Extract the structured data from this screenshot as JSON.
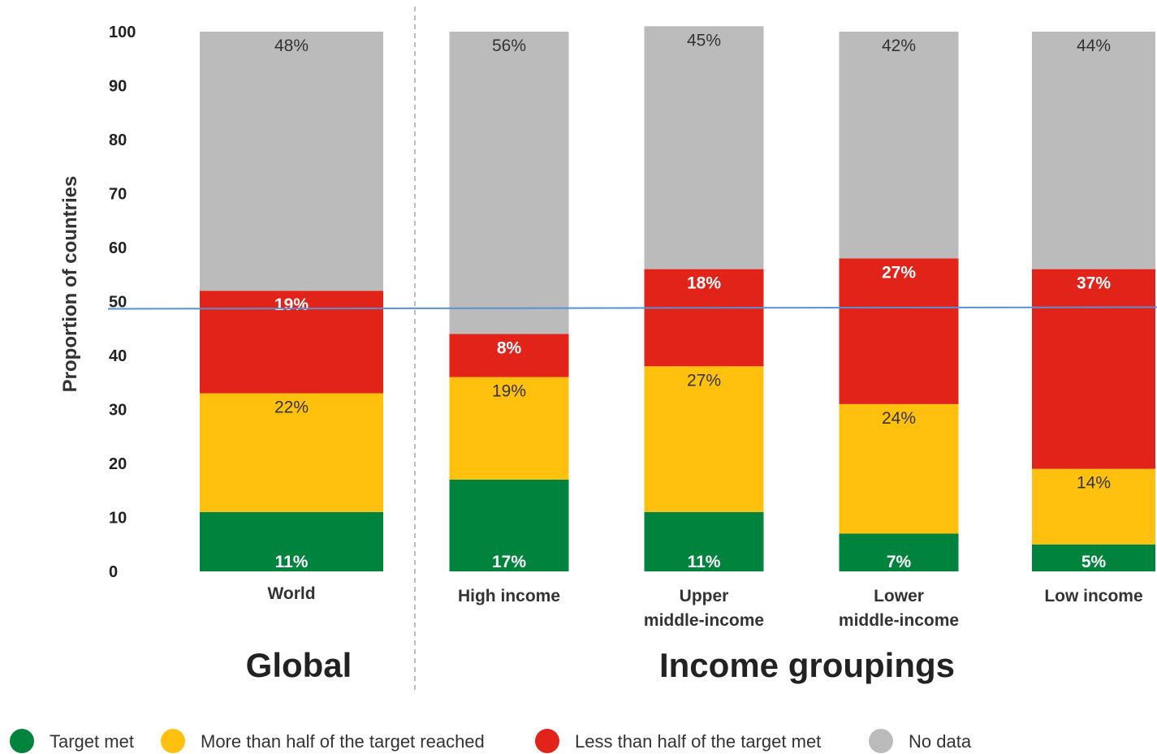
{
  "chart_data": {
    "type": "bar",
    "stacked": true,
    "ylabel": "Proportion of countries",
    "ylim": [
      0,
      100
    ],
    "yticks": [
      0,
      10,
      20,
      30,
      40,
      50,
      60,
      70,
      80,
      90,
      100
    ],
    "reference_line": 48.5,
    "categories": [
      "World",
      "High income",
      "Upper\nmiddle-income",
      "Lower\nmiddle-income",
      "Low income"
    ],
    "groups": [
      {
        "label": "Global",
        "categories": [
          0
        ]
      },
      {
        "label": "Income groupings",
        "categories": [
          1,
          2,
          3,
          4
        ]
      }
    ],
    "series": [
      {
        "name": "Target met",
        "color": "#00843d",
        "values": [
          11,
          17,
          11,
          7,
          5
        ],
        "labels": [
          "11%",
          "17%",
          "11%",
          "7%",
          "5%"
        ]
      },
      {
        "name": "More than half of the target reached",
        "color": "#ffc10e",
        "values": [
          22,
          19,
          27,
          24,
          14
        ],
        "labels": [
          "22%",
          "19%",
          "27%",
          "24%",
          "14%"
        ]
      },
      {
        "name": "Less than half of the target met",
        "color": "#e2231a",
        "values": [
          19,
          8,
          18,
          27,
          37
        ],
        "labels": [
          "19%",
          "8%",
          "18%",
          "27%",
          "37%"
        ]
      },
      {
        "name": "No data",
        "color": "#bbbbbb",
        "values": [
          48,
          56,
          45,
          42,
          44
        ],
        "labels": [
          "48%",
          "56%",
          "45%",
          "42%",
          "44%"
        ]
      }
    ],
    "legend_position": "bottom"
  }
}
